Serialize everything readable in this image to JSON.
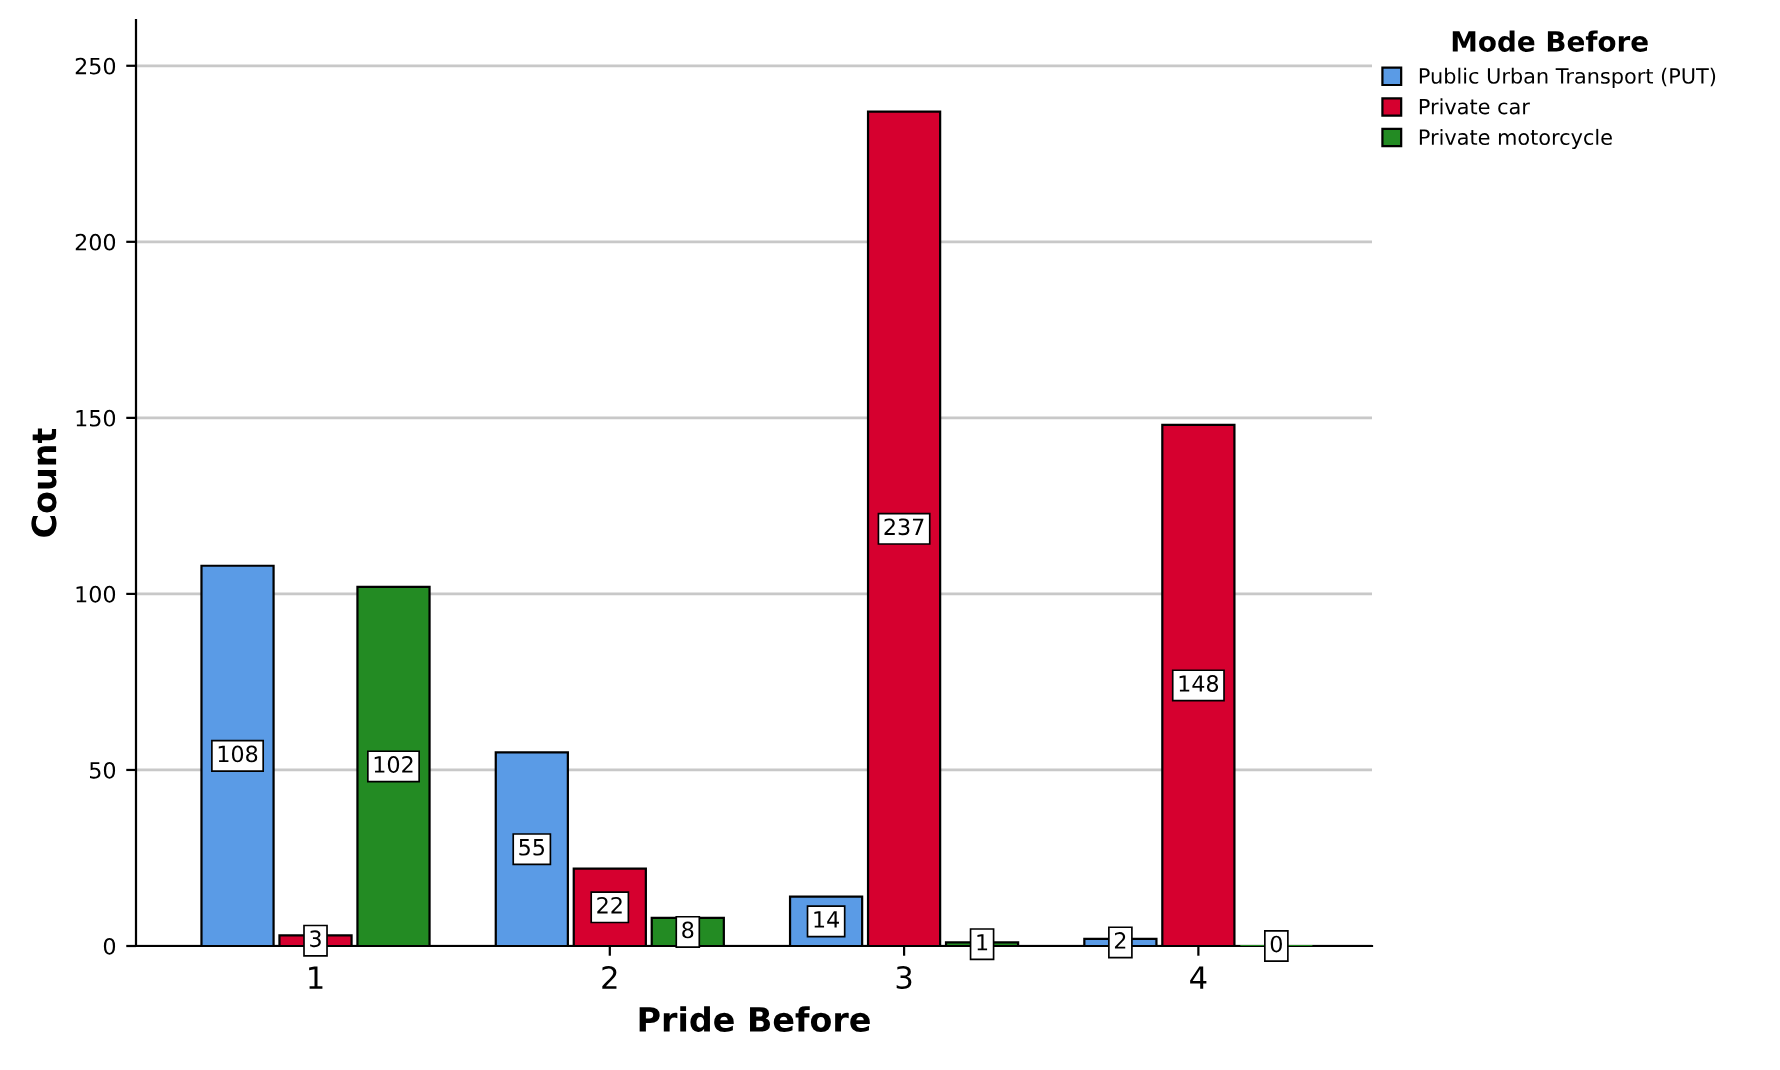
{
  "chart_data": {
    "type": "bar",
    "xlabel": "Pride Before",
    "ylabel": "Count",
    "legend_title": "Mode Before",
    "categories": [
      "1",
      "2",
      "3",
      "4"
    ],
    "series": [
      {
        "name": "Public Urban Transport (PUT)",
        "color": "#5a9be6",
        "values": [
          108,
          55,
          14,
          2
        ]
      },
      {
        "name": "Private car",
        "color": "#d6002f",
        "values": [
          3,
          22,
          237,
          148
        ]
      },
      {
        "name": "Private motorcycle",
        "color": "#238b23",
        "values": [
          102,
          8,
          1,
          0
        ]
      }
    ],
    "ylim": [
      0,
      263
    ],
    "yticks": [
      0,
      50,
      100,
      150,
      200,
      250
    ],
    "grid": "y",
    "legend": "top right",
    "data_labels": true
  }
}
